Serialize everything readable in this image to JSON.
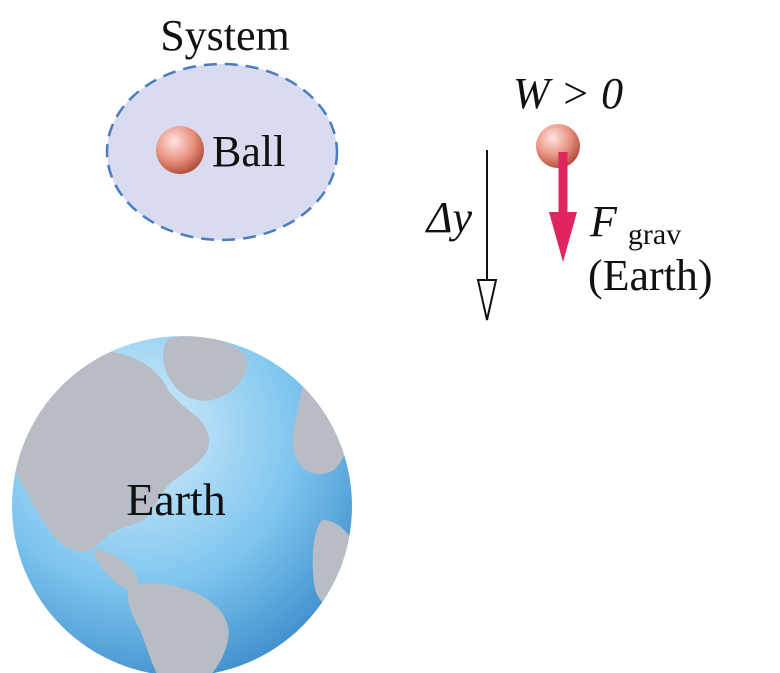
{
  "labels": {
    "system": "System",
    "ball": "Ball",
    "work": "W > 0",
    "delta_y": "Δy",
    "force_symbol": "F",
    "force_subscript": "grav",
    "force_source": "(Earth)",
    "earth": "Earth"
  },
  "colors": {
    "system_fill": "#d9dcf0",
    "system_border": "#4a7cc0",
    "force_arrow": "#e0245e",
    "ball_highlight": "#ffe4e0",
    "ball_body": "#e8907e",
    "ball_shadow": "#a8412f",
    "ocean_light": "#d8eefc",
    "ocean_mid": "#7cc4ee",
    "ocean_dark": "#2f7fc2",
    "land": "#b8bcc4"
  },
  "icons": {
    "ball": "sphere",
    "earth": "globe",
    "force": "arrow-down",
    "displacement": "hollow-arrow-down"
  }
}
